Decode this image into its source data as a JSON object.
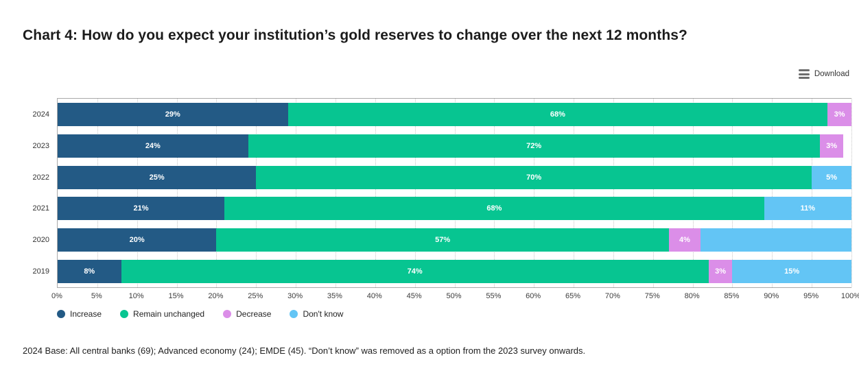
{
  "page": {
    "title": "Chart 4: How do you expect your institution’s gold reserves to change over the next 12 months?",
    "download_label": "Download"
  },
  "chart_data": {
    "type": "bar",
    "stacked": true,
    "orientation": "horizontal",
    "title": "Chart 4: How do you expect your institution’s gold reserves to change over the next 12 months?",
    "categories": [
      "2024",
      "2023",
      "2022",
      "2021",
      "2020",
      "2019"
    ],
    "series": [
      {
        "name": "Increase",
        "color": "#235A85",
        "values": [
          29,
          24,
          25,
          21,
          20,
          8
        ],
        "labels": [
          "29%",
          "24%",
          "25%",
          "21%",
          "20%",
          "8%"
        ]
      },
      {
        "name": "Remain unchanged",
        "color": "#07C591",
        "values": [
          68,
          72,
          70,
          68,
          57,
          74
        ],
        "labels": [
          "68%",
          "72%",
          "70%",
          "68%",
          "57%",
          "74%"
        ]
      },
      {
        "name": "Decrease",
        "color": "#DB8EE8",
        "values": [
          3,
          3,
          0,
          0,
          4,
          3
        ],
        "labels": [
          "3%",
          "3%",
          "",
          "",
          "4%",
          "3%"
        ]
      },
      {
        "name": "Don't know",
        "color": "#63C5F5",
        "values": [
          0,
          0,
          5,
          11,
          19,
          15
        ],
        "labels": [
          "",
          "",
          "5%",
          "11%",
          "",
          "15%"
        ]
      }
    ],
    "xlabel": "",
    "ylabel": "",
    "xlim": [
      0,
      100
    ],
    "x_ticks": [
      "0%",
      "5%",
      "10%",
      "15%",
      "20%",
      "25%",
      "30%",
      "35%",
      "40%",
      "45%",
      "50%",
      "55%",
      "60%",
      "65%",
      "70%",
      "75%",
      "80%",
      "85%",
      "90%",
      "95%",
      "100%"
    ],
    "grid": "dotted vertical lines every 5%",
    "legend_position": "bottom-left",
    "bar_label_color": "#ffffff"
  },
  "footnote": "2024 Base: All central banks (69); Advanced economy (24); EMDE (45). “Don’t know” was removed as a option from the 2023 survey onwards."
}
